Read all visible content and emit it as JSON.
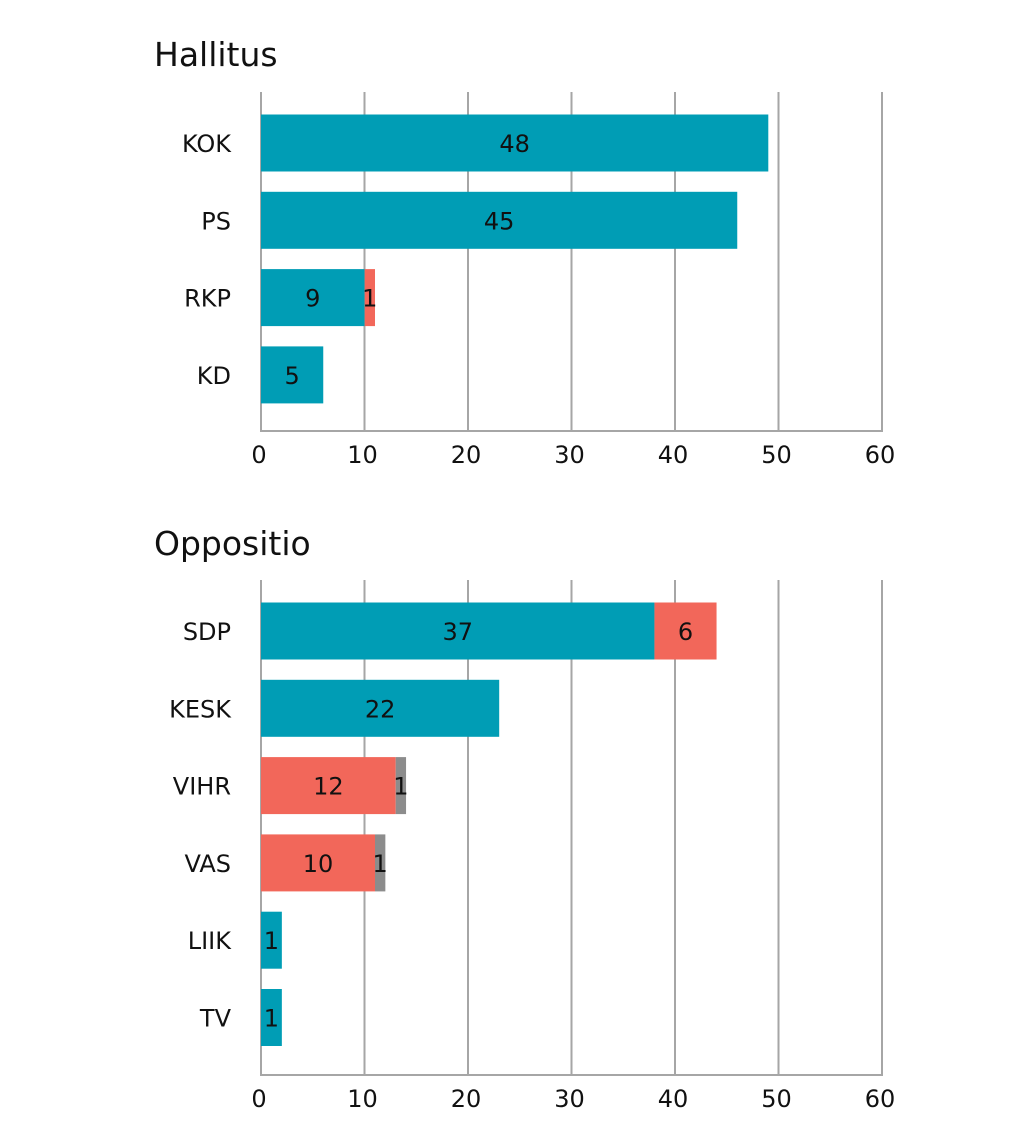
{
  "colors": {
    "teal": "#009db5",
    "coral": "#f2675a",
    "gray": "#8c8c8c",
    "grid": "#a6a6a6",
    "text": "#111111"
  },
  "chart_data": [
    {
      "type": "bar",
      "orientation": "horizontal",
      "stacked": true,
      "title": "Hallitus",
      "xlim": [
        0,
        60
      ],
      "xticks": [
        "0",
        "10",
        "20",
        "30",
        "40",
        "50",
        "60"
      ],
      "grid": true,
      "categories": [
        "KOK",
        "PS",
        "RKP",
        "KD"
      ],
      "series": [
        {
          "name": "teal",
          "color": "#009db5",
          "values": [
            48,
            45,
            9,
            5
          ]
        },
        {
          "name": "coral",
          "color": "#f2675a",
          "values": [
            0,
            0,
            1,
            0
          ]
        },
        {
          "name": "gray",
          "color": "#8c8c8c",
          "values": [
            0,
            0,
            0,
            0
          ]
        }
      ]
    },
    {
      "type": "bar",
      "orientation": "horizontal",
      "stacked": true,
      "title": "Oppositio",
      "xlim": [
        0,
        60
      ],
      "xticks": [
        "0",
        "10",
        "20",
        "30",
        "40",
        "50",
        "60"
      ],
      "grid": true,
      "categories": [
        "SDP",
        "KESK",
        "VIHR",
        "VAS",
        "LIIK",
        "TV"
      ],
      "series": [
        {
          "name": "teal",
          "color": "#009db5",
          "values": [
            37,
            22,
            0,
            0,
            1,
            1
          ]
        },
        {
          "name": "coral",
          "color": "#f2675a",
          "values": [
            6,
            0,
            12,
            10,
            0,
            0
          ]
        },
        {
          "name": "gray",
          "color": "#8c8c8c",
          "values": [
            0,
            0,
            1,
            1,
            0,
            0
          ]
        }
      ]
    }
  ]
}
